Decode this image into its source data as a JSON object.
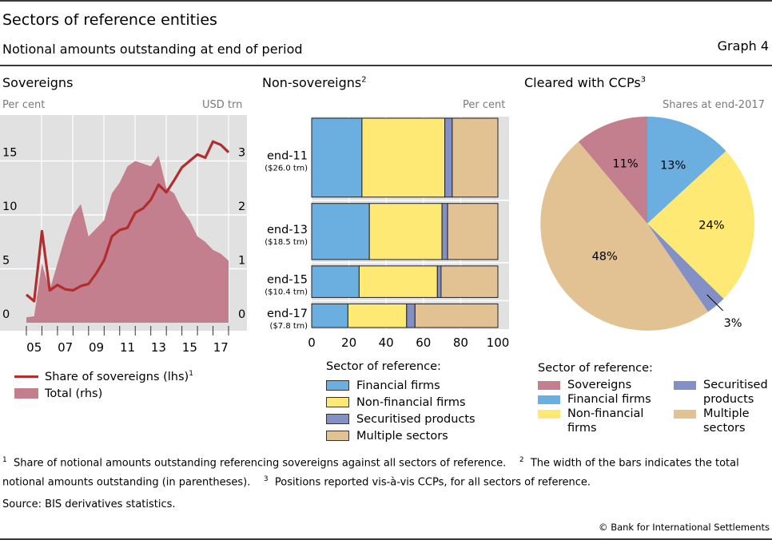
{
  "header": {
    "title": "Sectors of reference entities",
    "subtitle": "Notional amounts outstanding at end of period",
    "graph_number": "Graph 4"
  },
  "colors": {
    "sovereign_line": "#b22d2d",
    "total_area": "#c47f8f",
    "plot_bg": "#e1e1e1",
    "financial": "#6baee0",
    "non_financial": "#fde974",
    "securitised": "#8390c6",
    "multiple": "#e2c192",
    "sovereigns": "#c47f8f"
  },
  "panels": {
    "sovereigns": {
      "title": "Sovereigns",
      "left_unit": "Per cent",
      "right_unit": "USD trn",
      "legend": {
        "line_label": "Share of sovereigns (lhs)",
        "line_sup": "1",
        "area_label": "Total (rhs)"
      }
    },
    "non_sovereigns": {
      "title": "Non-sovereigns",
      "title_sup": "2",
      "unit": "Per cent",
      "legend_title": "Sector of reference:",
      "legend": [
        "Financial firms",
        "Non-financial firms",
        "Securitised products",
        "Multiple sectors"
      ]
    },
    "ccp": {
      "title": "Cleared with CCPs",
      "title_sup": "3",
      "unit": "Shares at end-2017",
      "legend_title": "Sector of reference:",
      "legend_left": [
        "Sovereigns",
        "Financial firms",
        "Non-financial firms"
      ],
      "legend_right": [
        "Securitised products",
        "Multiple sectors"
      ]
    }
  },
  "chart_data": [
    {
      "type": "line",
      "title": "Sovereigns",
      "x_tick_labels": [
        "05",
        "07",
        "09",
        "11",
        "13",
        "15",
        "17"
      ],
      "x": [
        "H2 04",
        "H1 05",
        "H2 05",
        "H1 06",
        "H2 06",
        "H1 07",
        "H2 07",
        "H1 08",
        "H2 08",
        "H1 09",
        "H2 09",
        "H1 10",
        "H2 10",
        "H1 11",
        "H2 11",
        "H1 12",
        "H2 12",
        "H1 13",
        "H2 13",
        "H1 14",
        "H2 14",
        "H1 15",
        "H2 15",
        "H1 16",
        "H2 16",
        "H1 17",
        "H2 17"
      ],
      "ylabel_left": "Per cent",
      "ylabel_right": "USD trn",
      "ylim_left": [
        0,
        20
      ],
      "yticks_left": [
        0,
        5,
        10,
        15
      ],
      "ylim_right": [
        0,
        4
      ],
      "yticks_right": [
        0,
        1,
        2,
        3
      ],
      "grid": true,
      "legend_placement": "bottom",
      "series": [
        {
          "name": "Share of sovereigns (lhs)",
          "axis": "left",
          "kind": "line",
          "values": [
            2.6,
            2.0,
            8.5,
            3.0,
            3.5,
            3.1,
            3.0,
            3.4,
            3.6,
            4.6,
            5.8,
            8.0,
            8.6,
            8.8,
            10.2,
            10.6,
            11.4,
            12.8,
            12.1,
            13.2,
            14.4,
            15.0,
            15.6,
            15.3,
            16.8,
            16.5,
            15.8
          ]
        },
        {
          "name": "Total (rhs)",
          "axis": "right",
          "kind": "area",
          "values": [
            0.1,
            0.12,
            1.1,
            0.6,
            1.1,
            1.6,
            2.0,
            2.2,
            1.6,
            1.75,
            1.9,
            2.4,
            2.6,
            2.9,
            3.0,
            2.95,
            2.9,
            3.1,
            2.5,
            2.4,
            2.1,
            1.9,
            1.6,
            1.5,
            1.35,
            1.28,
            1.15
          ]
        }
      ]
    },
    {
      "type": "bar",
      "orientation": "horizontal-stacked",
      "title": "Non-sovereigns",
      "xlabel": "Per cent",
      "xlim": [
        0,
        100
      ],
      "xticks": [
        0,
        20,
        40,
        60,
        80,
        100
      ],
      "categories": [
        "end-11",
        "end-13",
        "end-15",
        "end-17"
      ],
      "category_notes": [
        "($26.0 trn)",
        "($18.5 trn)",
        "($10.4 trn)",
        "($7.8 trn)"
      ],
      "bar_width_totals_usd_trn": [
        26.0,
        18.5,
        10.4,
        7.8
      ],
      "legend_placement": "bottom",
      "series": [
        {
          "name": "Financial firms",
          "values": [
            27,
            31,
            25.5,
            19.5
          ]
        },
        {
          "name": "Non-financial firms",
          "values": [
            44.5,
            39,
            42,
            31.5
          ]
        },
        {
          "name": "Securitised products",
          "values": [
            4,
            3,
            2,
            4.5
          ]
        },
        {
          "name": "Multiple sectors",
          "values": [
            24.5,
            27,
            30.5,
            44.5
          ]
        }
      ]
    },
    {
      "type": "pie",
      "title": "Cleared with CCPs",
      "subtitle": "Shares at end-2017",
      "legend_placement": "bottom",
      "slices": [
        {
          "name": "Financial firms",
          "value": 13,
          "label": "13%"
        },
        {
          "name": "Non-financial firms",
          "value": 24,
          "label": "24%"
        },
        {
          "name": "Securitised products",
          "value": 3,
          "label": "3%"
        },
        {
          "name": "Multiple sectors",
          "value": 48,
          "label": "48%"
        },
        {
          "name": "Sovereigns",
          "value": 11,
          "label": "11%"
        }
      ]
    }
  ],
  "footnotes": {
    "n1_mark": "1",
    "n1": "Share of notional amounts outstanding referencing sovereigns against all sectors of reference.",
    "n2_mark": "2",
    "n2a": "The width of the bars indicates the total",
    "n2b": "notional amounts outstanding (in parentheses).",
    "n3_mark": "3",
    "n3": "Positions reported vis-à-vis CCPs, for all sectors of reference.",
    "source": "Source: BIS derivatives statistics.",
    "copyright": "© Bank for International Settlements"
  }
}
